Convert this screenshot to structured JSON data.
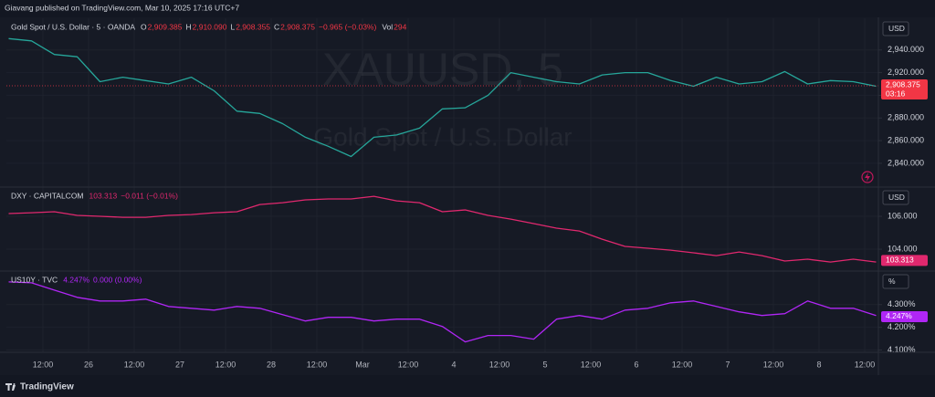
{
  "header": {
    "text": "Giavang published on TradingView.com, Mar 10, 2025 17:16 UTC+7"
  },
  "footer": {
    "brand": "TradingView"
  },
  "x_axis": {
    "xlim": [
      2.4,
      231.6
    ],
    "xticks": [
      {
        "value": 12,
        "label": "12:00"
      },
      {
        "value": 24,
        "label": "26"
      },
      {
        "value": 36,
        "label": "12:00"
      },
      {
        "value": 48,
        "label": "27"
      },
      {
        "value": 60,
        "label": "12:00"
      },
      {
        "value": 72,
        "label": "28"
      },
      {
        "value": 84,
        "label": "12:00"
      },
      {
        "value": 96,
        "label": "Mar"
      },
      {
        "value": 108,
        "label": "12:00"
      },
      {
        "value": 120,
        "label": "4"
      },
      {
        "value": 132,
        "label": "12:00"
      },
      {
        "value": 144,
        "label": "5"
      },
      {
        "value": 156,
        "label": "12:00"
      },
      {
        "value": 168,
        "label": "6"
      },
      {
        "value": 180,
        "label": "12:00"
      },
      {
        "value": 192,
        "label": "7"
      },
      {
        "value": 204,
        "label": "12:00"
      },
      {
        "value": 216,
        "label": "8"
      },
      {
        "value": 228,
        "label": "12:00"
      }
    ]
  },
  "chart_data": [
    {
      "type": "line",
      "title": "XAUUSD, 5",
      "subtitle": "Gold Spot / U.S. Dollar",
      "scale_unit": "USD",
      "price_line": true,
      "x": [
        3,
        9,
        15,
        21,
        27,
        33,
        39,
        45,
        51,
        57,
        63,
        69,
        75,
        81,
        87,
        93,
        99,
        105,
        111,
        117,
        123,
        129,
        135,
        141,
        147,
        153,
        159,
        165,
        171,
        177,
        183,
        189,
        195,
        201,
        207,
        213,
        219,
        225,
        231
      ],
      "series": [
        {
          "name": "Gold Spot / U.S. Dollar · 5 · OANDA",
          "color": "#26a69a",
          "values": [
            2950,
            2948,
            2936,
            2934,
            2912,
            2916,
            2913,
            2910,
            2916,
            2904,
            2886,
            2884,
            2875,
            2863,
            2855,
            2846,
            2863,
            2865,
            2871,
            2888,
            2889,
            2900,
            2920,
            2916,
            2912,
            2910,
            2918,
            2920,
            2920,
            2913,
            2908,
            2916,
            2910,
            2912,
            2921,
            2910,
            2913,
            2912,
            2908
          ]
        }
      ],
      "ylim": [
        2819,
        2968
      ],
      "yticks": [
        {
          "value": 2840,
          "label": "2,840.000"
        },
        {
          "value": 2860,
          "label": "2,860.000"
        },
        {
          "value": 2880,
          "label": "2,880.000"
        },
        {
          "value": 2900,
          "label": "2,900.000"
        },
        {
          "value": 2920,
          "label": "2,920.000"
        },
        {
          "value": 2940,
          "label": "2,940.000"
        }
      ],
      "last": {
        "value": 2908.375,
        "label": "2,908.375",
        "color": "#f23645"
      },
      "countdown": "03:16",
      "legend": {
        "ohlc": [
          [
            "O",
            "2,909.385"
          ],
          [
            "H",
            "2,910.090"
          ],
          [
            "L",
            "2,908.355"
          ],
          [
            "C",
            "2,908.375"
          ]
        ],
        "change": "−0.965 (−0.03%)",
        "volume_label": "Vol",
        "volume": "294"
      }
    },
    {
      "type": "line",
      "scale_unit": "USD",
      "x": [
        3,
        9,
        15,
        21,
        27,
        33,
        39,
        45,
        51,
        57,
        63,
        69,
        75,
        81,
        87,
        93,
        99,
        105,
        111,
        117,
        123,
        129,
        135,
        141,
        147,
        153,
        159,
        165,
        171,
        177,
        183,
        189,
        195,
        201,
        207,
        213,
        219,
        225,
        231
      ],
      "series": [
        {
          "name": "DXY · CAPITALCOM",
          "color": "#e0286e",
          "values": [
            106.17,
            106.22,
            106.28,
            106.06,
            106.0,
            105.94,
            105.94,
            106.06,
            106.11,
            106.22,
            106.28,
            106.72,
            106.83,
            107.0,
            107.06,
            107.06,
            107.22,
            106.94,
            106.83,
            106.28,
            106.39,
            106.06,
            105.83,
            105.56,
            105.28,
            105.11,
            104.61,
            104.17,
            104.06,
            103.94,
            103.78,
            103.61,
            103.83,
            103.61,
            103.28,
            103.39,
            103.22,
            103.39,
            103.22
          ]
        }
      ],
      "ylim": [
        102.67,
        107.78
      ],
      "yticks": [
        {
          "value": 104,
          "label": "104.000"
        },
        {
          "value": 106,
          "label": "106.000"
        }
      ],
      "last": {
        "value": 103.313,
        "label": "103.313",
        "color": "#e0286e"
      },
      "legend": {
        "change": "−0.011 (−0.01%)"
      }
    },
    {
      "type": "line",
      "scale_unit": "%",
      "x": [
        3,
        9,
        15,
        21,
        27,
        33,
        39,
        45,
        51,
        57,
        63,
        69,
        75,
        81,
        87,
        93,
        99,
        105,
        111,
        117,
        123,
        129,
        135,
        141,
        147,
        153,
        159,
        165,
        171,
        177,
        183,
        189,
        195,
        201,
        207,
        213,
        219,
        225,
        231
      ],
      "series": [
        {
          "name": "US10Y · TVC",
          "color": "#b026f5",
          "values": [
            4.4,
            4.396,
            4.364,
            4.332,
            4.316,
            4.316,
            4.324,
            4.292,
            4.284,
            4.276,
            4.292,
            4.284,
            4.256,
            4.228,
            4.244,
            4.244,
            4.228,
            4.236,
            4.236,
            4.204,
            4.136,
            4.164,
            4.164,
            4.148,
            4.236,
            4.252,
            4.236,
            4.276,
            4.284,
            4.308,
            4.316,
            4.292,
            4.268,
            4.252,
            4.26,
            4.316,
            4.284,
            4.284,
            4.252
          ]
        }
      ],
      "ylim": [
        4.09,
        4.448
      ],
      "yticks": [
        {
          "value": 4.1,
          "label": "4.100%"
        },
        {
          "value": 4.2,
          "label": "4.200%"
        },
        {
          "value": 4.3,
          "label": "4.300%"
        }
      ],
      "last": {
        "value": 4.247,
        "label": "4.247%",
        "color": "#b026f5"
      },
      "legend": {
        "change": "0.000 (0.00%)"
      }
    }
  ]
}
